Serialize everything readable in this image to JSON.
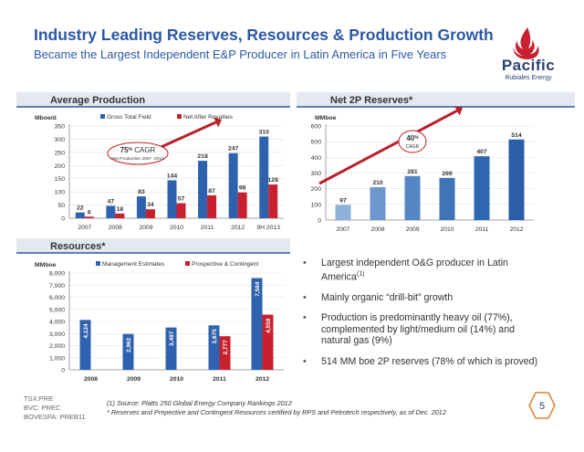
{
  "header": {
    "title": "Industry Leading Reserves, Resources & Production Growth",
    "subtitle": "Became the Largest Independent E&P Producer in Latin America in Five Years"
  },
  "logo": {
    "name": "Pacific",
    "tagline": "Rubiales Energy",
    "colors": {
      "flame": "#c8202d",
      "text": "#2b3f73"
    }
  },
  "colors": {
    "accent": "#2b59a6",
    "series_blue": "#2f62ae",
    "series_red": "#c8202d",
    "arrow": "#b8202a"
  },
  "chart_data": [
    {
      "type": "bar",
      "title": "Average Production",
      "ylabel": "Mboe/d",
      "categories": [
        "2007",
        "2008",
        "2009",
        "2010",
        "2011",
        "2012",
        "9H 2013"
      ],
      "series": [
        {
          "name": "Gross Total Field",
          "values": [
            22,
            47,
            83,
            144,
            218,
            247,
            310
          ]
        },
        {
          "name": "Net After Royalties",
          "values": [
            6,
            18,
            34,
            57,
            87,
            98,
            128
          ]
        }
      ],
      "ylim": [
        0,
        350
      ],
      "yticks": [
        0,
        50,
        100,
        150,
        200,
        250,
        300,
        350
      ],
      "annotation": {
        "value": "75",
        "unit": "%",
        "label": "CAGR",
        "note": "Net Production 2007 -2012"
      },
      "legend_position": "top"
    },
    {
      "type": "bar",
      "title": "Net 2P Reserves*",
      "ylabel": "MMboe",
      "categories": [
        "2007",
        "2008",
        "2009",
        "2010",
        "2011",
        "2012"
      ],
      "series": [
        {
          "values": [
            97,
            210,
            281,
            269,
            407,
            514
          ]
        }
      ],
      "ylim": [
        0,
        600
      ],
      "yticks": [
        0,
        100,
        200,
        300,
        400,
        500,
        600
      ],
      "annotation": {
        "value": "40",
        "unit": "%",
        "label": "CAGR"
      }
    },
    {
      "type": "bar",
      "title": "Resources*",
      "ylabel": "MMboe",
      "categories": [
        "2008",
        "2009",
        "2010",
        "2011",
        "2012"
      ],
      "series": [
        {
          "name": "Management Estimates",
          "values": [
            4124,
            2962,
            3497,
            3675,
            7584
          ]
        },
        {
          "name": "Prospective & Contingent",
          "values": [
            null,
            null,
            null,
            2777,
            4559
          ]
        }
      ],
      "ylim": [
        0,
        8000
      ],
      "yticks": [
        0,
        1000,
        2000,
        3000,
        4000,
        5000,
        6000,
        7000,
        8000
      ],
      "legend_position": "top"
    }
  ],
  "bullets": [
    {
      "text": "Largest independent O&G producer in Latin America",
      "sup": "(1)"
    },
    {
      "text": "Mainly organic “drill-bit” growth",
      "sup": ""
    },
    {
      "text": "Production is predominantly heavy oil (77%), complemented by light/medium oil (14%) and natural gas (9%)",
      "sup": ""
    },
    {
      "text": "514 MM boe 2P reserves (78% of which is proved)",
      "sup": ""
    }
  ],
  "footer": {
    "tickers": [
      "TSX:PRE",
      "BVC: PREC",
      "BOVESPA: PREB11"
    ],
    "footnote1": "(1)  Source: Platts 250 Global Energy Company Rankings 2012",
    "footnote2": "*  Reserves and Prepective and Contingent Resources certified by RPS and Petrotech respectively, as of Dec. 2012",
    "page_number": "5"
  }
}
